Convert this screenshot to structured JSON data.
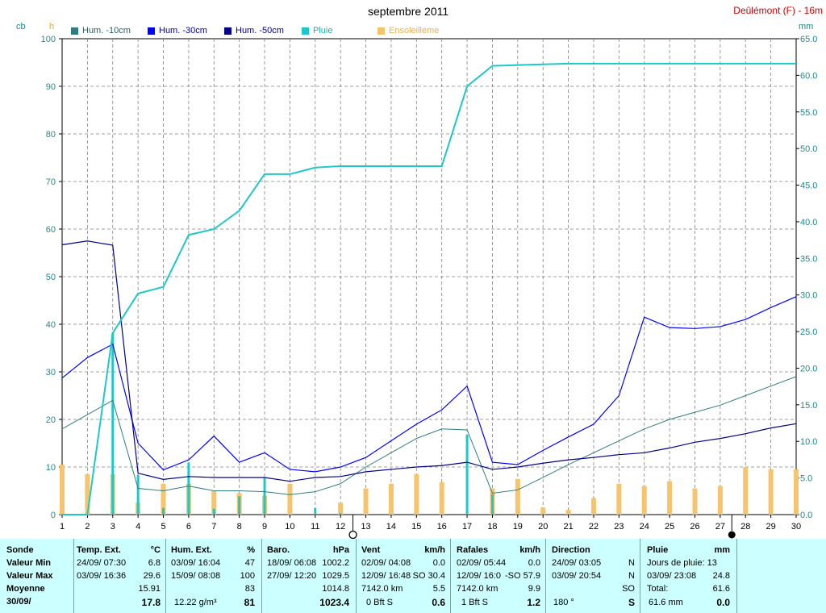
{
  "title": "septembre 2011",
  "station": "Deûlémont (F) - 16m",
  "units": {
    "left1": "cb",
    "left2": "h",
    "right": "mm"
  },
  "colors": {
    "hum10": "#2f7f7f",
    "hum30": "#0000ff",
    "hum50": "#00008b",
    "pluie": "#1ec8c8",
    "soleil": "#f6c46c",
    "grid": "#808080",
    "table_bg": "#ccffff"
  },
  "legend": [
    {
      "label": "Hum. -10cm",
      "color": "#2f7f7f"
    },
    {
      "label": "Hum. -30cm",
      "color": "#0000ff"
    },
    {
      "label": "Hum. -50cm",
      "color": "#00008b"
    },
    {
      "label": "Pluie",
      "color": "#1ec8c8"
    },
    {
      "label": "Ensoleilleme",
      "color": "#f6c46c"
    }
  ],
  "chart_data": {
    "type": "line",
    "title": "septembre 2011",
    "x": [
      1,
      2,
      3,
      4,
      5,
      6,
      7,
      8,
      9,
      10,
      11,
      12,
      13,
      14,
      15,
      16,
      17,
      18,
      19,
      20,
      21,
      22,
      23,
      24,
      25,
      26,
      27,
      28,
      29,
      30
    ],
    "xlim": [
      1,
      30
    ],
    "ylim_left": [
      0,
      100
    ],
    "ylim_right": [
      0,
      65
    ],
    "y_ticks_left": [
      "0",
      "10",
      "20",
      "30",
      "40",
      "50",
      "60",
      "70",
      "80",
      "90",
      "100"
    ],
    "y_ticks_right": [
      "0.0",
      "5.0",
      "10.0",
      "15.0",
      "20.0",
      "25.0",
      "30.0",
      "35.0",
      "40.0",
      "45.0",
      "50.0",
      "55.0",
      "60.0",
      "65.0"
    ],
    "grid": true,
    "series": [
      {
        "name": "Hum. -10cm",
        "axis": "left",
        "values": [
          18,
          21,
          24,
          5.5,
          5,
          6,
          5,
          5,
          4.8,
          4.2,
          4.8,
          6.5,
          10,
          13,
          16,
          18,
          17.8,
          4.5,
          5.2,
          7.8,
          10.5,
          13,
          15.5,
          18,
          20,
          21.5,
          23,
          25,
          27,
          29
        ]
      },
      {
        "name": "Hum. -30cm",
        "axis": "left",
        "values": [
          28.7,
          33,
          35.8,
          15,
          9.4,
          11.5,
          16.5,
          11,
          13,
          9.5,
          9,
          10,
          12,
          15.5,
          19,
          22,
          27,
          11,
          10.5,
          13.5,
          16.3,
          19,
          25,
          41.5,
          39.3,
          39.1,
          39.5,
          41,
          43.5,
          45.8
        ]
      },
      {
        "name": "Hum. -50cm",
        "axis": "left",
        "values": [
          56.7,
          57.5,
          56.6,
          8.7,
          7.4,
          8,
          7.8,
          7.8,
          7.8,
          7,
          7.8,
          8,
          9,
          9.5,
          10,
          10.3,
          11,
          9.5,
          10,
          10.8,
          11.5,
          12,
          12.6,
          13,
          14,
          15.2,
          16,
          17,
          18.2,
          19.1
        ]
      },
      {
        "name": "Pluie",
        "axis": "right",
        "values": [
          0,
          0,
          24.8,
          30.2,
          31.1,
          38.2,
          39,
          41.5,
          46.5,
          46.5,
          47.4,
          47.6,
          47.6,
          47.6,
          47.6,
          47.6,
          58.5,
          61.3,
          61.4,
          61.5,
          61.6,
          61.6,
          61.6,
          61.6,
          61.6,
          61.6,
          61.6,
          61.6,
          61.6,
          61.6
        ]
      },
      {
        "name": "Pluie",
        "axis": "right",
        "style": "daily-bars",
        "values": [
          0,
          0,
          24.8,
          5.4,
          0.9,
          7.1,
          0.8,
          2.5,
          5.0,
          0,
          0.9,
          0.2,
          0,
          0,
          0,
          0,
          10.9,
          2.8,
          0.1,
          0.1,
          0.1,
          0,
          0,
          0,
          0,
          0,
          0,
          0,
          0,
          0
        ]
      },
      {
        "name": "Ensoleilleme",
        "axis": "left",
        "style": "daily-bars",
        "values": [
          10.5,
          8.5,
          8.5,
          2.5,
          6.5,
          6.5,
          5,
          4.5,
          4,
          6.5,
          0,
          2.5,
          5.5,
          6.5,
          8.5,
          6.8,
          0,
          5.5,
          7.5,
          1.5,
          1,
          3.5,
          6.5,
          6,
          7,
          5.5,
          6,
          10,
          9.5,
          9.5
        ]
      }
    ],
    "markers": [
      {
        "day": 13,
        "symbol": "○",
        "label": "new-moon"
      },
      {
        "day": 28,
        "symbol": "●",
        "label": "full-moon"
      }
    ]
  },
  "table": {
    "rows": [
      "Sonde",
      "Valeur Min",
      "Valeur Max",
      "Moyenne",
      "30/09/"
    ],
    "temp": {
      "title": "Temp. Ext.",
      "unit": "°C",
      "min_date": "24/09/  07:30",
      "min_val": "6.8",
      "max_date": "03/09/  16:36",
      "max_val": "29.6",
      "avg": "15.91",
      "cur": "17.8"
    },
    "hum": {
      "title": "Hum. Ext.",
      "unit": "%",
      "min_date": "03/09/  16:04",
      "min_val": "47",
      "max_date": "15/09/  08:08",
      "max_val": "100",
      "avg": "83",
      "cur_extra": "12.22 g/m³",
      "cur": "81"
    },
    "baro": {
      "title": "Baro.",
      "unit": "hPa",
      "min_date": "18/09/  06:08",
      "min_val": "1002.2",
      "max_date": "27/09/  12:20",
      "max_val": "1029.5",
      "avg": "1014.8",
      "cur": "1023.4"
    },
    "vent": {
      "title": "Vent",
      "unit": "km/h",
      "min_date": "02/09/  04:08",
      "min_val": "0.0",
      "max_date": "12/09/  16:48",
      "max_val": "SO  30.4",
      "avg_extra": "7142.0 km",
      "avg": "5.5",
      "cur_extra": "0 Bft S",
      "cur": "0.6"
    },
    "rafales": {
      "title": "Rafales",
      "unit": "km/h",
      "min_date": "02/09/  05:44",
      "min_val": "0.0",
      "max_date": "12/09/  16:0",
      "max_val": "-SO  57.9",
      "avg_extra": "7142.0 km",
      "avg": "9.9",
      "cur_extra": "1 Bft S",
      "cur": "1.2"
    },
    "direction": {
      "title": "Direction",
      "min_date": "24/09/  03:05",
      "min_val": "N",
      "max_date": "03/09/  20:54",
      "max_val": "N",
      "avg": "SO",
      "cur_extra": "180 °",
      "cur": "S"
    },
    "pluie": {
      "title": "Pluie",
      "unit": "mm",
      "days_label": "Jours de pluie: 13",
      "max_date": "03/09/  23:08",
      "max_val": "24.8",
      "total_label": "Total:",
      "total_val": "61.6",
      "cur_extra": "61.6 mm",
      "cur": "0.0"
    }
  }
}
